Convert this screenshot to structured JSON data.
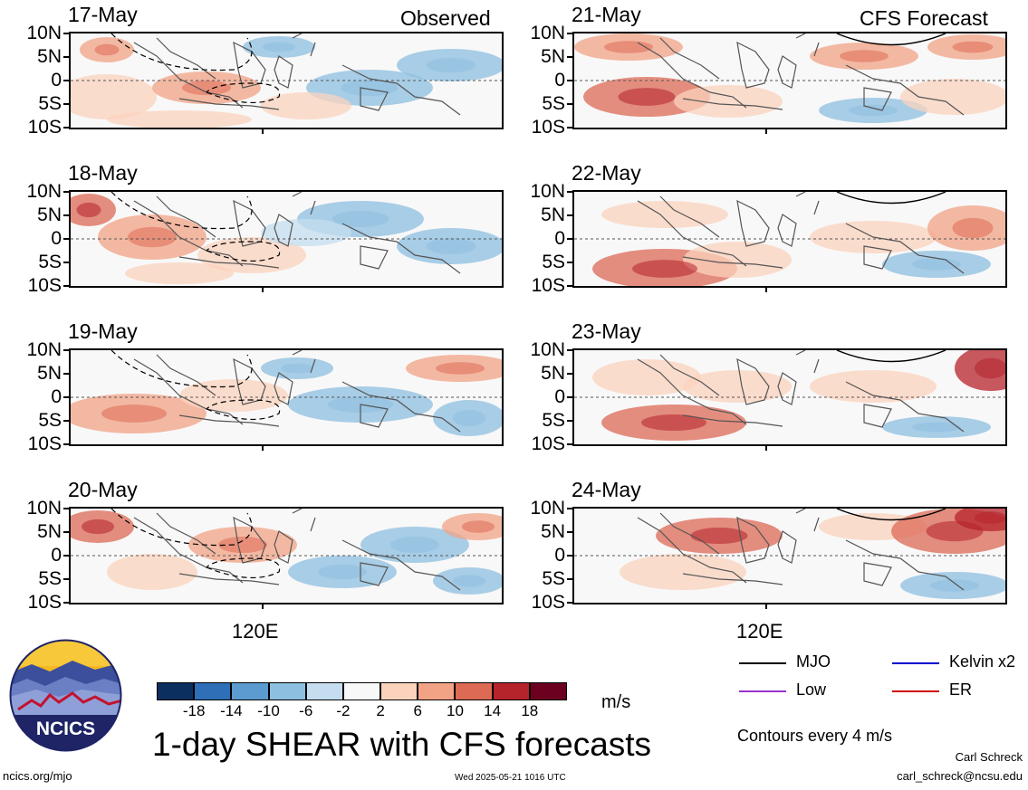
{
  "header": {
    "left_title": "Observed",
    "right_title": "CFS Forecast"
  },
  "lat_labels": [
    "10N",
    "5N",
    "0",
    "5S",
    "10S"
  ],
  "lon_label": "120E",
  "panels": [
    {
      "date": "17-May",
      "type": "observed"
    },
    {
      "date": "18-May",
      "type": "observed"
    },
    {
      "date": "19-May",
      "type": "observed"
    },
    {
      "date": "20-May",
      "type": "observed"
    },
    {
      "date": "21-May",
      "type": "forecast"
    },
    {
      "date": "22-May",
      "type": "forecast"
    },
    {
      "date": "23-May",
      "type": "forecast"
    },
    {
      "date": "24-May",
      "type": "forecast"
    }
  ],
  "colorbar": {
    "labels": [
      "-18",
      "-14",
      "-10",
      "-6",
      "-2",
      "2",
      "6",
      "10",
      "14",
      "18"
    ],
    "units": "m/s",
    "colors": [
      "#0b2f5e",
      "#2e6fb7",
      "#5b9bd0",
      "#8dbfe0",
      "#c4deef",
      "#f8f8f8",
      "#fbd3bd",
      "#f2a385",
      "#dc6a55",
      "#b5232b",
      "#6b0020"
    ]
  },
  "legend": {
    "items": [
      {
        "label": "MJO",
        "color": "#000000"
      },
      {
        "label": "Kelvin x2",
        "color": "#0000cc"
      },
      {
        "label": "Low",
        "color": "#9933cc"
      },
      {
        "label": "ER",
        "color": "#cc0000"
      }
    ],
    "contour_note": "Contours every 4 m/s"
  },
  "footer": {
    "logo_text": "NCICS",
    "title": "1-day SHEAR with CFS forecasts",
    "url": "ncics.org/mjo",
    "timestamp": "Wed 2025-05-21 1016 UTC",
    "author": "Carl Schreck",
    "email": "carl_schreck@ncsu.edu"
  }
}
